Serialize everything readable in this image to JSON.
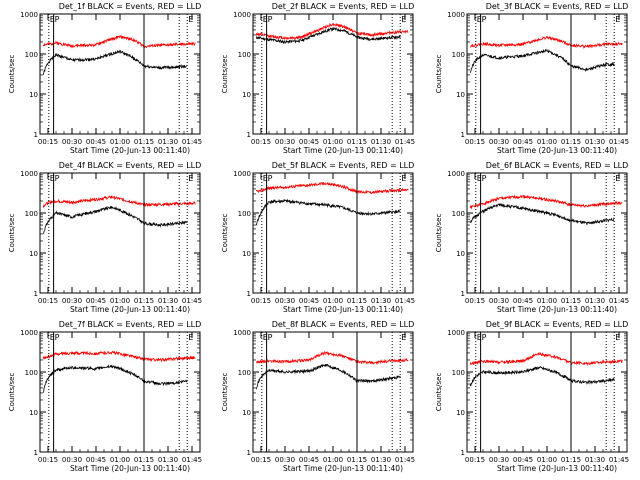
{
  "figure": {
    "colors": {
      "events": "#000000",
      "lld": "#ff0000",
      "axes": "#000000",
      "background": "#ffffff"
    }
  },
  "chart_data": [
    {
      "type": "line",
      "title": "Det_1f BLACK = Events, RED = LLD",
      "xlabel": "Start Time (20-Jun-13 00:11:40)",
      "ylabel": "Counts/sec",
      "y_scale": "log",
      "ylim": [
        1,
        1000
      ],
      "y_ticks": [
        "1",
        "10",
        "100",
        "1000"
      ],
      "xlim_min": [
        10,
        110
      ],
      "x_ticks": {
        "values": [
          15,
          30,
          45,
          60,
          75,
          90,
          105
        ],
        "labels": [
          "00:15",
          "00:30",
          "00:45",
          "01:00",
          "01:15",
          "01:30",
          "01:45"
        ]
      },
      "markers": [
        {
          "t": 15.5,
          "label": "E",
          "style": "dotted"
        },
        {
          "t": 18.5,
          "label": "P",
          "style": "solid"
        },
        {
          "t": 75.0,
          "label": "",
          "style": "solid"
        },
        {
          "t": 97.0,
          "label": "",
          "style": "dotted"
        },
        {
          "t": 102.0,
          "label": "E",
          "style": "dotted"
        }
      ],
      "series": [
        {
          "name": "Events",
          "color": "black",
          "x": [
            12,
            15,
            20,
            30,
            45,
            60,
            68,
            75,
            85,
            97,
            102
          ],
          "y": [
            30,
            60,
            95,
            70,
            75,
            115,
            80,
            50,
            45,
            48,
            50
          ]
        },
        {
          "name": "LLD",
          "color": "red",
          "x": [
            12,
            15,
            20,
            30,
            45,
            60,
            68,
            75,
            85,
            97,
            107
          ],
          "y": [
            170,
            175,
            190,
            160,
            170,
            270,
            230,
            155,
            165,
            175,
            180
          ]
        }
      ]
    },
    {
      "type": "line",
      "title": "Det_2f BLACK = Events, RED = LLD",
      "xlabel": "Start Time (20-Jun-13 00:11:40)",
      "ylabel": "Counts/sec",
      "y_scale": "log",
      "ylim": [
        1,
        1000
      ],
      "y_ticks": [
        "1",
        "10",
        "100",
        "1000"
      ],
      "xlim_min": [
        10,
        110
      ],
      "x_ticks": {
        "values": [
          15,
          30,
          45,
          60,
          75,
          90,
          105
        ],
        "labels": [
          "00:15",
          "00:30",
          "00:45",
          "01:00",
          "01:15",
          "01:30",
          "01:45"
        ]
      },
      "markers": [
        {
          "t": 15.5,
          "label": "E",
          "style": "dotted"
        },
        {
          "t": 18.5,
          "label": "P",
          "style": "solid"
        },
        {
          "t": 75.0,
          "label": "",
          "style": "solid"
        },
        {
          "t": 97.0,
          "label": "",
          "style": "dotted"
        },
        {
          "t": 102.0,
          "label": "E",
          "style": "dotted"
        }
      ],
      "series": [
        {
          "name": "Events",
          "color": "black",
          "x": [
            12,
            20,
            30,
            40,
            50,
            60,
            67,
            75,
            85,
            95,
            102
          ],
          "y": [
            260,
            230,
            200,
            215,
            310,
            430,
            380,
            260,
            235,
            255,
            270
          ]
        },
        {
          "name": "LLD",
          "color": "red",
          "x": [
            12,
            20,
            30,
            40,
            50,
            60,
            67,
            75,
            85,
            95,
            107
          ],
          "y": [
            320,
            280,
            250,
            260,
            380,
            560,
            480,
            330,
            300,
            340,
            360
          ]
        }
      ]
    },
    {
      "type": "line",
      "title": "Det_3f BLACK = Events, RED = LLD",
      "xlabel": "Start Time (20-Jun-13 00:11:40)",
      "ylabel": "Counts/sec",
      "y_scale": "log",
      "ylim": [
        1,
        1000
      ],
      "y_ticks": [
        "1",
        "10",
        "100",
        "1000"
      ],
      "xlim_min": [
        10,
        110
      ],
      "x_ticks": {
        "values": [
          15,
          30,
          45,
          60,
          75,
          90,
          105
        ],
        "labels": [
          "00:15",
          "00:30",
          "00:45",
          "01:00",
          "01:15",
          "01:30",
          "01:45"
        ]
      },
      "markers": [
        {
          "t": 15.5,
          "label": "E",
          "style": "dotted"
        },
        {
          "t": 18.5,
          "label": "P",
          "style": "solid"
        },
        {
          "t": 75.0,
          "label": "",
          "style": "solid"
        },
        {
          "t": 97.0,
          "label": "",
          "style": "dotted"
        },
        {
          "t": 102.0,
          "label": "E",
          "style": "dotted"
        }
      ],
      "series": [
        {
          "name": "Events",
          "color": "black",
          "x": [
            12,
            15,
            20,
            30,
            45,
            60,
            68,
            75,
            85,
            97,
            102
          ],
          "y": [
            35,
            65,
            95,
            80,
            90,
            120,
            85,
            50,
            40,
            55,
            55
          ]
        },
        {
          "name": "LLD",
          "color": "red",
          "x": [
            12,
            15,
            20,
            30,
            45,
            60,
            68,
            75,
            85,
            97,
            107
          ],
          "y": [
            160,
            165,
            180,
            165,
            175,
            260,
            215,
            165,
            155,
            175,
            180
          ]
        }
      ]
    },
    {
      "type": "line",
      "title": "Det_4f BLACK = Events, RED = LLD",
      "xlabel": "Start Time (20-Jun-13 00:11:40)",
      "ylabel": "Counts/sec",
      "y_scale": "log",
      "ylim": [
        1,
        1000
      ],
      "y_ticks": [
        "1",
        "10",
        "100",
        "1000"
      ],
      "xlim_min": [
        10,
        110
      ],
      "x_ticks": {
        "values": [
          15,
          30,
          45,
          60,
          75,
          90,
          105
        ],
        "labels": [
          "00:15",
          "00:30",
          "00:45",
          "01:00",
          "01:15",
          "01:30",
          "01:45"
        ]
      },
      "markers": [
        {
          "t": 15.5,
          "label": "E",
          "style": "dotted"
        },
        {
          "t": 18.5,
          "label": "P",
          "style": "solid"
        },
        {
          "t": 75.0,
          "label": "",
          "style": "solid"
        },
        {
          "t": 97.0,
          "label": "",
          "style": "dotted"
        },
        {
          "t": 102.0,
          "label": "E",
          "style": "dotted"
        }
      ],
      "series": [
        {
          "name": "Events",
          "color": "black",
          "x": [
            12,
            15,
            20,
            30,
            45,
            55,
            65,
            75,
            85,
            97,
            102
          ],
          "y": [
            30,
            60,
            100,
            80,
            110,
            140,
            95,
            55,
            50,
            55,
            60
          ]
        },
        {
          "name": "LLD",
          "color": "red",
          "x": [
            12,
            15,
            20,
            30,
            45,
            55,
            65,
            75,
            85,
            97,
            107
          ],
          "y": [
            150,
            180,
            200,
            185,
            220,
            250,
            200,
            160,
            165,
            170,
            175
          ]
        }
      ]
    },
    {
      "type": "line",
      "title": "Det_5f BLACK = Events, RED = LLD",
      "xlabel": "Start Time (20-Jun-13 00:11:40)",
      "ylabel": "Counts/sec",
      "y_scale": "log",
      "ylim": [
        1,
        1000
      ],
      "y_ticks": [
        "1",
        "10",
        "100",
        "1000"
      ],
      "xlim_min": [
        10,
        110
      ],
      "x_ticks": {
        "values": [
          15,
          30,
          45,
          60,
          75,
          90,
          105
        ],
        "labels": [
          "00:15",
          "00:30",
          "00:45",
          "01:00",
          "01:15",
          "01:30",
          "01:45"
        ]
      },
      "markers": [
        {
          "t": 15.5,
          "label": "E",
          "style": "dotted"
        },
        {
          "t": 18.5,
          "label": "P",
          "style": "solid"
        },
        {
          "t": 75.0,
          "label": "",
          "style": "solid"
        },
        {
          "t": 97.0,
          "label": "",
          "style": "dotted"
        },
        {
          "t": 102.0,
          "label": "E",
          "style": "dotted"
        }
      ],
      "series": [
        {
          "name": "Events",
          "color": "black",
          "x": [
            12,
            15,
            20,
            30,
            45,
            55,
            65,
            75,
            85,
            97,
            102
          ],
          "y": [
            50,
            100,
            190,
            200,
            170,
            160,
            140,
            100,
            95,
            105,
            110
          ]
        },
        {
          "name": "LLD",
          "color": "red",
          "x": [
            12,
            15,
            20,
            30,
            45,
            55,
            65,
            75,
            85,
            97,
            107
          ],
          "y": [
            340,
            360,
            420,
            440,
            500,
            550,
            470,
            340,
            330,
            360,
            380
          ]
        }
      ]
    },
    {
      "type": "line",
      "title": "Det_6f BLACK = Events, RED = LLD",
      "xlabel": "Start Time (20-Jun-13 00:11:40)",
      "ylabel": "Counts/sec",
      "y_scale": "log",
      "ylim": [
        1,
        1000
      ],
      "y_ticks": [
        "1",
        "10",
        "100",
        "1000"
      ],
      "xlim_min": [
        10,
        110
      ],
      "x_ticks": {
        "values": [
          15,
          30,
          45,
          60,
          75,
          90,
          105
        ],
        "labels": [
          "00:15",
          "00:30",
          "00:45",
          "01:00",
          "01:15",
          "01:30",
          "01:45"
        ]
      },
      "markers": [
        {
          "t": 15.5,
          "label": "E",
          "style": "dotted"
        },
        {
          "t": 18.5,
          "label": "P",
          "style": "solid"
        },
        {
          "t": 75.0,
          "label": "",
          "style": "solid"
        },
        {
          "t": 97.0,
          "label": "",
          "style": "dotted"
        },
        {
          "t": 102.0,
          "label": "E",
          "style": "dotted"
        }
      ],
      "series": [
        {
          "name": "Events",
          "color": "black",
          "x": [
            12,
            15,
            20,
            30,
            45,
            55,
            65,
            75,
            85,
            97,
            102
          ],
          "y": [
            60,
            80,
            110,
            160,
            130,
            110,
            90,
            65,
            55,
            65,
            70
          ]
        },
        {
          "name": "LLD",
          "color": "red",
          "x": [
            12,
            15,
            20,
            30,
            45,
            55,
            65,
            75,
            85,
            97,
            107
          ],
          "y": [
            140,
            150,
            170,
            230,
            260,
            230,
            200,
            160,
            150,
            170,
            180
          ]
        }
      ]
    },
    {
      "type": "line",
      "title": "Det_7f BLACK = Events, RED = LLD",
      "xlabel": "Start Time (20-Jun-13 00:11:40)",
      "ylabel": "Counts/sec",
      "y_scale": "log",
      "ylim": [
        1,
        1000
      ],
      "y_ticks": [
        "1",
        "10",
        "100",
        "1000"
      ],
      "xlim_min": [
        10,
        110
      ],
      "x_ticks": {
        "values": [
          15,
          30,
          45,
          60,
          75,
          90,
          105
        ],
        "labels": [
          "00:15",
          "00:30",
          "00:45",
          "01:00",
          "01:15",
          "01:30",
          "01:45"
        ]
      },
      "markers": [
        {
          "t": 15.5,
          "label": "E",
          "style": "dotted"
        },
        {
          "t": 18.5,
          "label": "P",
          "style": "solid"
        },
        {
          "t": 75.0,
          "label": "",
          "style": "solid"
        },
        {
          "t": 97.0,
          "label": "",
          "style": "dotted"
        },
        {
          "t": 102.0,
          "label": "E",
          "style": "dotted"
        }
      ],
      "series": [
        {
          "name": "Events",
          "color": "black",
          "x": [
            12,
            15,
            20,
            30,
            45,
            55,
            65,
            75,
            85,
            97,
            102
          ],
          "y": [
            30,
            70,
            110,
            130,
            120,
            140,
            100,
            60,
            50,
            55,
            60
          ]
        },
        {
          "name": "LLD",
          "color": "red",
          "x": [
            12,
            15,
            20,
            30,
            45,
            55,
            65,
            75,
            85,
            97,
            107
          ],
          "y": [
            220,
            240,
            280,
            300,
            290,
            310,
            260,
            210,
            200,
            220,
            230
          ]
        }
      ]
    },
    {
      "type": "line",
      "title": "Det_8f BLACK = Events, RED = LLD",
      "xlabel": "Start Time (20-Jun-13 00:11:40)",
      "ylabel": "Counts/sec",
      "y_scale": "log",
      "ylim": [
        1,
        1000
      ],
      "y_ticks": [
        "1",
        "10",
        "100",
        "1000"
      ],
      "xlim_min": [
        10,
        110
      ],
      "x_ticks": {
        "values": [
          15,
          30,
          45,
          60,
          75,
          90,
          105
        ],
        "labels": [
          "00:15",
          "00:30",
          "00:45",
          "01:00",
          "01:15",
          "01:30",
          "01:45"
        ]
      },
      "markers": [
        {
          "t": 15.5,
          "label": "E",
          "style": "dotted"
        },
        {
          "t": 18.5,
          "label": "P",
          "style": "solid"
        },
        {
          "t": 75.0,
          "label": "",
          "style": "solid"
        },
        {
          "t": 97.0,
          "label": "",
          "style": "dotted"
        },
        {
          "t": 102.0,
          "label": "E",
          "style": "dotted"
        }
      ],
      "series": [
        {
          "name": "Events",
          "color": "black",
          "x": [
            12,
            15,
            20,
            30,
            45,
            55,
            65,
            75,
            85,
            97,
            102
          ],
          "y": [
            40,
            75,
            110,
            100,
            105,
            150,
            110,
            60,
            60,
            70,
            75
          ]
        },
        {
          "name": "LLD",
          "color": "red",
          "x": [
            12,
            15,
            20,
            30,
            45,
            55,
            65,
            75,
            85,
            97,
            107
          ],
          "y": [
            170,
            180,
            190,
            180,
            200,
            300,
            260,
            180,
            170,
            190,
            200
          ]
        }
      ]
    },
    {
      "type": "line",
      "title": "Det_9f BLACK = Events, RED = LLD",
      "xlabel": "Start Time (20-Jun-13 00:11:40)",
      "ylabel": "Counts/sec",
      "y_scale": "log",
      "ylim": [
        1,
        1000
      ],
      "y_ticks": [
        "1",
        "10",
        "100",
        "1000"
      ],
      "xlim_min": [
        10,
        110
      ],
      "x_ticks": {
        "values": [
          15,
          30,
          45,
          60,
          75,
          90,
          105
        ],
        "labels": [
          "00:15",
          "00:30",
          "00:45",
          "01:00",
          "01:15",
          "01:30",
          "01:45"
        ]
      },
      "markers": [
        {
          "t": 15.5,
          "label": "E",
          "style": "dotted"
        },
        {
          "t": 18.5,
          "label": "P",
          "style": "solid"
        },
        {
          "t": 75.0,
          "label": "",
          "style": "solid"
        },
        {
          "t": 97.0,
          "label": "",
          "style": "dotted"
        },
        {
          "t": 102.0,
          "label": "E",
          "style": "dotted"
        }
      ],
      "series": [
        {
          "name": "Events",
          "color": "black",
          "x": [
            12,
            15,
            20,
            30,
            45,
            55,
            65,
            75,
            85,
            97,
            102
          ],
          "y": [
            45,
            75,
            100,
            95,
            100,
            130,
            100,
            60,
            55,
            60,
            65
          ]
        },
        {
          "name": "LLD",
          "color": "red",
          "x": [
            12,
            15,
            20,
            30,
            45,
            55,
            65,
            75,
            85,
            97,
            107
          ],
          "y": [
            160,
            170,
            185,
            175,
            190,
            280,
            240,
            170,
            165,
            180,
            190
          ]
        }
      ]
    }
  ]
}
